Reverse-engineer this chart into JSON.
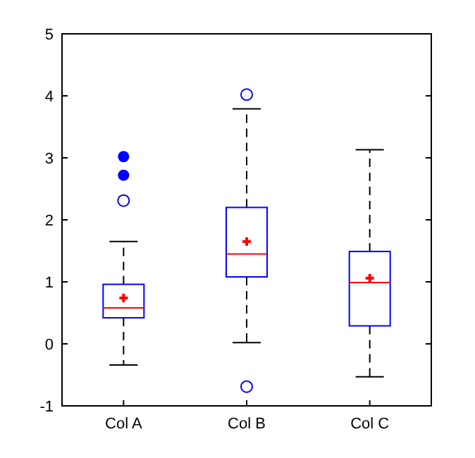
{
  "chart_data": {
    "type": "box",
    "categories": [
      "Col A",
      "Col B",
      "Col C"
    ],
    "ylim": [
      -1,
      5
    ],
    "yticks": [
      -1,
      0,
      1,
      2,
      3,
      4,
      5
    ],
    "grid": false,
    "series": [
      {
        "color": "#0000ff",
        "boxes": [
          {
            "low": -0.34,
            "q1": 0.42,
            "median": 0.58,
            "q3": 0.96,
            "high": 1.65,
            "mean": 0.74,
            "outliers": [
              2.31
            ]
          },
          {
            "low": 0.02,
            "q1": 1.08,
            "median": 1.45,
            "q3": 2.2,
            "high": 3.79,
            "mean": 1.65,
            "outliers": [
              4.02,
              -0.69
            ]
          },
          {
            "low": -0.53,
            "q1": 0.29,
            "median": 0.99,
            "q3": 1.49,
            "high": 3.13,
            "mean": 1.06
          }
        ]
      },
      {
        "type": "scatter",
        "color": "#0000ff",
        "marker": "circle",
        "x": [
          "Col A",
          "Col A"
        ],
        "values": [
          3.02,
          2.72
        ]
      }
    ]
  }
}
